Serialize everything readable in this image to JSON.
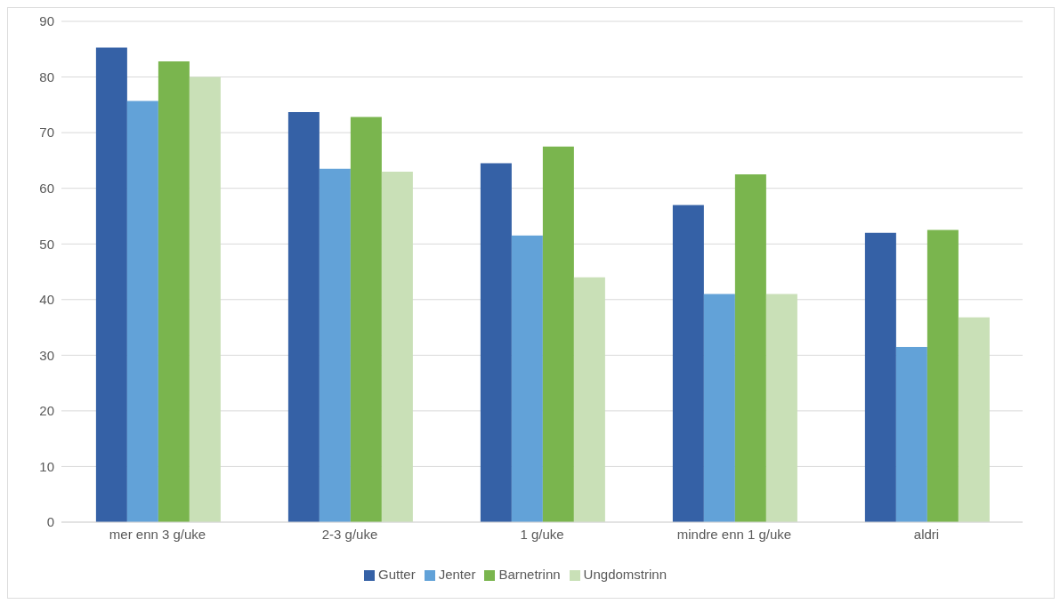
{
  "chart_data": {
    "type": "bar",
    "categories": [
      "mer enn 3 g/uke",
      "2-3 g/uke",
      "1  g/uke",
      "mindre enn 1 g/uke",
      "aldri"
    ],
    "series": [
      {
        "name": "Gutter",
        "color": "#3561a6",
        "values": [
          85.3,
          73.7,
          64.5,
          57,
          52
        ]
      },
      {
        "name": "Jenter",
        "color": "#62a2d8",
        "values": [
          75.7,
          63.5,
          51.5,
          41,
          31.5
        ]
      },
      {
        "name": "Barnetrinn",
        "color": "#7ab54e",
        "values": [
          82.8,
          72.8,
          67.5,
          62.5,
          52.5
        ]
      },
      {
        "name": "Ungdomstrinn",
        "color": "#c9e0b7",
        "values": [
          80,
          63,
          44,
          41,
          36.8
        ]
      }
    ],
    "ylim": [
      0,
      90
    ],
    "yticks": [
      0,
      10,
      20,
      30,
      40,
      50,
      60,
      70,
      80,
      90
    ],
    "grid": "y",
    "legend": "bottom"
  }
}
